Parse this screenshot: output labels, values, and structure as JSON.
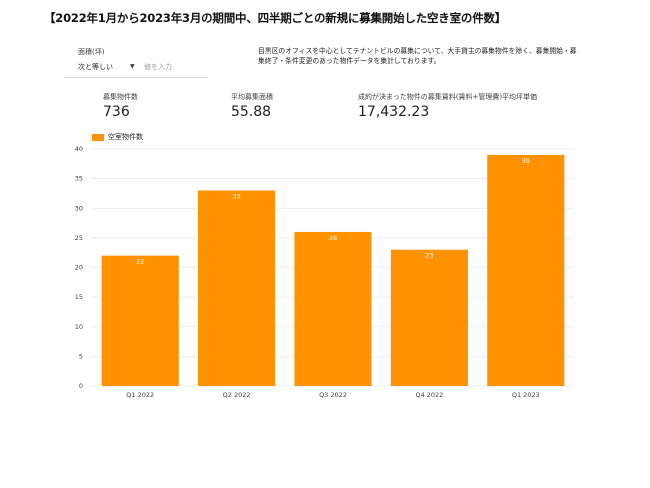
{
  "page": {
    "title": "【2022年1月から2023年3月の期間中、四半期ごとの新規に募集開始した空き室の件数】",
    "description": "目黒区のオフィスを中心としてテナントビルの募集について、大手貸主の募集物件を除く、募集開始・募集終了・条件変更のあった物件データを集計しております。"
  },
  "filter": {
    "label": "面積(坪)",
    "operator": "次と等しい",
    "placeholder": "値を入力"
  },
  "kpis": [
    {
      "label": "募集物件数",
      "value": "736"
    },
    {
      "label": "平均募集面積",
      "value": "55.88"
    },
    {
      "label": "成約が決まった物件の募集賃料(賃料+管理費)平均坪単価",
      "value": "17,432.23"
    }
  ],
  "colors": {
    "bar": "#ff9200",
    "grid": "#e6e6e6"
  },
  "chart_data": {
    "type": "bar",
    "categories": [
      "Q1 2022",
      "Q2 2022",
      "Q3 2022",
      "Q4 2022",
      "Q1 2023"
    ],
    "series": [
      {
        "name": "空室物件数",
        "values": [
          22,
          33,
          26,
          23,
          39
        ]
      }
    ],
    "ylim": [
      0,
      40
    ],
    "yticks": [
      0,
      5,
      10,
      15,
      20,
      25,
      30,
      35,
      40
    ],
    "grid": true,
    "legend": "top-left",
    "data_labels": true
  }
}
